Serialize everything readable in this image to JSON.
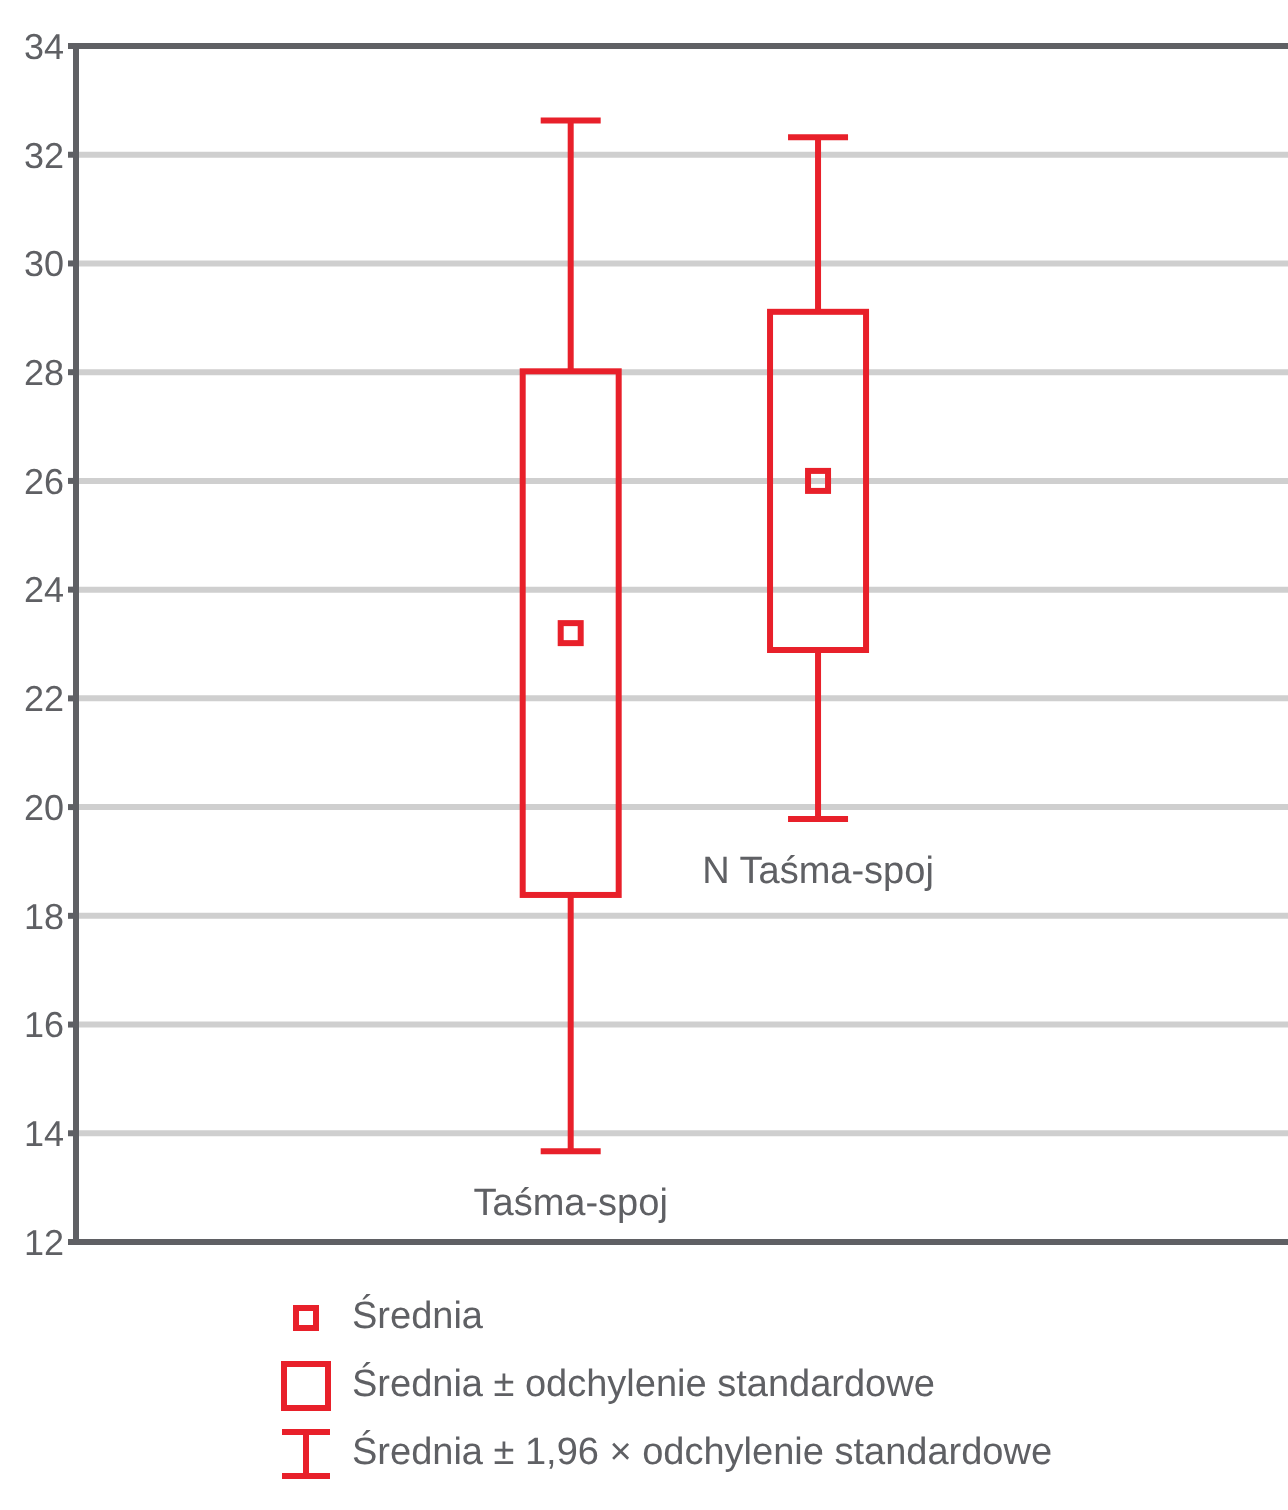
{
  "chart_data": {
    "type": "box",
    "categories": [
      "Taśma-spoj",
      "N Taśma-spoj"
    ],
    "boxes": [
      {
        "low": 13.7,
        "q1": 18.4,
        "median": 23.2,
        "q3": 28.0,
        "high": 32.6
      },
      {
        "low": 19.8,
        "q1": 22.9,
        "median": 26.0,
        "q3": 29.1,
        "high": 32.3
      }
    ],
    "color": "#e8202a",
    "ylim": [
      12,
      34
    ],
    "yticks": [
      12,
      14,
      16,
      18,
      20,
      22,
      24,
      26,
      28,
      30,
      32,
      34
    ],
    "grid": "y",
    "annotations": [
      "Średnia",
      "Średnia ± odchylenie standardowe",
      "Średnia ± 1,96 × odchylenie standardowe"
    ]
  }
}
